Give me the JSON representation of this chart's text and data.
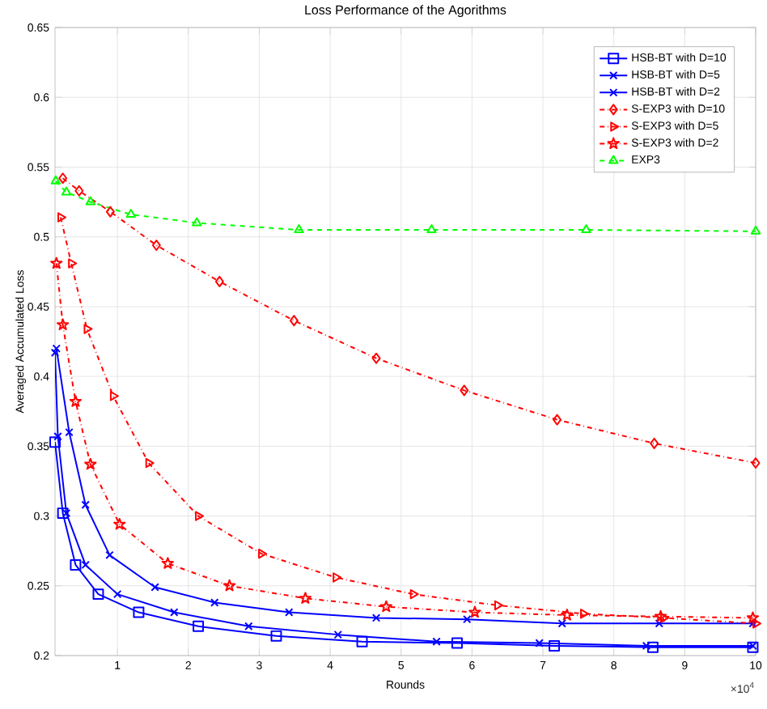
{
  "chart_data": {
    "type": "line",
    "title": "Loss Performance of the Agorithms",
    "xlabel": "Rounds",
    "ylabel": "Averaged Accumulated Loss",
    "annotations": [
      "×10$^{4}$"
    ],
    "xlim": [
      0.12,
      10
    ],
    "ylim": [
      0.2,
      0.65
    ],
    "xticks": [
      1,
      2,
      3,
      4,
      5,
      6,
      7,
      8,
      9,
      10
    ],
    "yticks": [
      0.2,
      0.25,
      0.3,
      0.35,
      0.4,
      0.45,
      0.5,
      0.55,
      0.6,
      0.65
    ],
    "grid": true,
    "legend": "top right",
    "series": [
      {
        "name": "HSB-BT with D=10",
        "color": "#0000ff",
        "marker": "square",
        "line_style": "solid",
        "x": [
          0.12,
          0.23,
          0.41,
          0.73,
          1.3,
          2.14,
          3.24,
          4.45,
          5.79,
          7.16,
          8.55,
          9.96
        ],
        "values": [
          0.353,
          0.302,
          0.265,
          0.244,
          0.231,
          0.221,
          0.214,
          0.21,
          0.209,
          0.207,
          0.206,
          0.206
        ]
      },
      {
        "name": "HSB-BT with D=5",
        "color": "#0000ff",
        "marker": "cross",
        "line_style": "solid",
        "x": [
          0.12,
          0.16,
          0.28,
          0.55,
          1.0,
          1.8,
          2.85,
          4.11,
          5.5,
          6.95,
          8.46,
          9.96
        ],
        "values": [
          0.417,
          0.357,
          0.302,
          0.265,
          0.244,
          0.231,
          0.221,
          0.215,
          0.21,
          0.209,
          0.207,
          0.207
        ]
      },
      {
        "name": "HSB-BT with D=2",
        "color": "#0000ff",
        "marker": "cross",
        "line_style": "solid",
        "x": [
          0.14,
          0.32,
          0.55,
          0.89,
          1.53,
          2.37,
          3.42,
          4.65,
          5.93,
          7.27,
          8.64,
          9.96
        ],
        "values": [
          0.42,
          0.36,
          0.308,
          0.272,
          0.249,
          0.238,
          0.231,
          0.227,
          0.226,
          0.223,
          0.223,
          0.223
        ]
      },
      {
        "name": "S-EXP3 with D=10",
        "color": "#ff0000",
        "marker": "diamond",
        "line_style": "dashdot",
        "x": [
          0.23,
          0.46,
          0.9,
          1.55,
          2.44,
          3.49,
          4.65,
          5.89,
          7.2,
          8.57,
          10
        ],
        "values": [
          0.542,
          0.533,
          0.518,
          0.494,
          0.468,
          0.44,
          0.413,
          0.39,
          0.369,
          0.352,
          0.338
        ]
      },
      {
        "name": "S-EXP3 with D=5",
        "color": "#ff0000",
        "marker": "triangle-right",
        "line_style": "dashdot",
        "x": [
          0.2,
          0.35,
          0.57,
          0.94,
          1.44,
          2.14,
          3.03,
          4.08,
          5.17,
          6.36,
          7.57,
          8.7,
          10
        ],
        "values": [
          0.514,
          0.481,
          0.434,
          0.386,
          0.338,
          0.3,
          0.273,
          0.256,
          0.244,
          0.236,
          0.23,
          0.227,
          0.223
        ]
      },
      {
        "name": "S-EXP3 with D=2",
        "color": "#ff0000",
        "marker": "star",
        "line_style": "dashdot",
        "x": [
          0.14,
          0.23,
          0.41,
          0.62,
          1.03,
          1.71,
          2.58,
          3.65,
          4.79,
          6.04,
          7.34,
          8.66,
          9.96
        ],
        "values": [
          0.481,
          0.437,
          0.382,
          0.337,
          0.294,
          0.266,
          0.25,
          0.241,
          0.235,
          0.231,
          0.229,
          0.228,
          0.227
        ]
      },
      {
        "name": "EXP3",
        "color": "#00ff00",
        "marker": "triangle",
        "line_style": "dashed",
        "x": [
          0.13,
          0.28,
          0.62,
          1.19,
          2.12,
          3.56,
          5.43,
          7.61,
          10
        ],
        "values": [
          0.54,
          0.532,
          0.525,
          0.516,
          0.51,
          0.505,
          0.505,
          0.505,
          0.504
        ]
      }
    ]
  }
}
